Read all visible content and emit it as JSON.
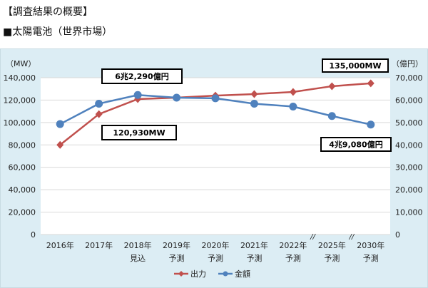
{
  "header": {
    "title": "【調査結果の概要】",
    "subtitle": "■太陽電池（世界市場）"
  },
  "chart_data": {
    "type": "line",
    "categories": [
      [
        "2016年",
        ""
      ],
      [
        "2017年",
        ""
      ],
      [
        "2018年",
        "見込"
      ],
      [
        "2019年",
        "予測"
      ],
      [
        "2020年",
        "予測"
      ],
      [
        "2021年",
        "予測"
      ],
      [
        "2022年",
        "予測"
      ],
      [
        "2025年",
        "予測"
      ],
      [
        "2030年",
        "予測"
      ]
    ],
    "y_left": {
      "label": "（MW）",
      "ylim": [
        0,
        140000
      ],
      "ticks": [
        "0",
        "20,000",
        "40,000",
        "60,000",
        "80,000",
        "100,000",
        "120,000",
        "140,000"
      ]
    },
    "y_right": {
      "label": "（億円）",
      "ylim": [
        0,
        70000
      ],
      "ticks": [
        "0",
        "10,000",
        "20,000",
        "30,000",
        "40,000",
        "50,000",
        "60,000",
        "70,000"
      ]
    },
    "series": [
      {
        "name": "出力",
        "axis": "left",
        "color": "#c0504d",
        "marker": "diamond",
        "values": [
          80000,
          107500,
          120930,
          122200,
          124000,
          125400,
          127300,
          132400,
          135000
        ]
      },
      {
        "name": "金額",
        "axis": "right",
        "color": "#4f81bd",
        "marker": "circle",
        "values": [
          49300,
          58400,
          62290,
          61100,
          60800,
          58400,
          57100,
          52900,
          49080
        ]
      }
    ],
    "annotations": [
      "6兆2,290億円",
      "120,930MW",
      "135,000MW",
      "4兆9,080億円"
    ],
    "axis_break_marks": [
      "//",
      "//"
    ],
    "legend": "bottom",
    "grid": true
  }
}
